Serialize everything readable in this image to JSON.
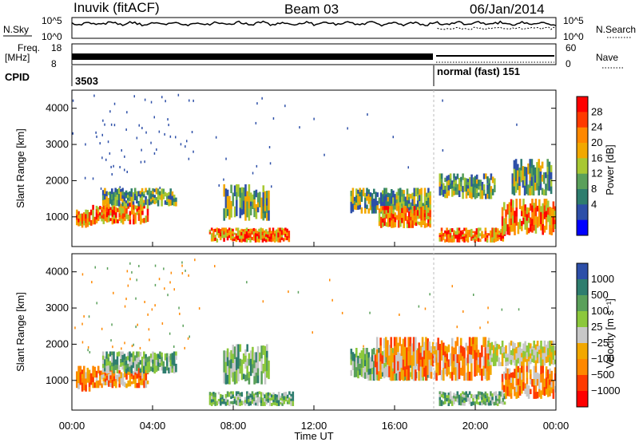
{
  "header": {
    "radar": "Inuvik (fitACF)",
    "beam": "Beam 03",
    "date": "06/Jan/2014"
  },
  "top_panels": {
    "nsky_label": "N.Sky",
    "nsky_ticks": [
      "10^5",
      "10^0"
    ],
    "nsearch_label": "N.Search",
    "nsearch_ticks": [
      "10^5",
      "10^0"
    ],
    "freq_label_line1": "Freq.",
    "freq_label_line2": "[MHz]",
    "freq_ticks": [
      "18",
      "8"
    ],
    "nave_label": "Nave",
    "nave_ticks": [
      "60",
      "0"
    ],
    "cpid_label": "CPID",
    "cpid_value_1": "3503",
    "cpid_value_2": "normal (fast) 151"
  },
  "chart_data": [
    {
      "type": "heatmap",
      "title": "",
      "parameter": "Power",
      "colorbar_label": "Power [dB]",
      "colorbar_ticks": [
        "28",
        "24",
        "20",
        "16",
        "12",
        "8",
        "4"
      ],
      "colorbar_colors": [
        "#ff0000",
        "#ff3a00",
        "#ff8800",
        "#f2a800",
        "#a8c832",
        "#5aa05a",
        "#2e7d6e",
        "#2d4fa8",
        "#0000ff"
      ],
      "ylabel": "Slant Range [km]",
      "yticks": [
        "4000",
        "3000",
        "2000",
        "1000"
      ],
      "ylim": [
        180,
        4500
      ],
      "xlabel": "",
      "xlim": [
        "00:00",
        "24:00"
      ],
      "blobs": [
        {
          "t0": 0.2,
          "t1": 1.0,
          "r0": 700,
          "r1": 1200,
          "level": "high"
        },
        {
          "t0": 1.0,
          "t1": 3.8,
          "r0": 800,
          "r1": 1400,
          "level": "high"
        },
        {
          "t0": 1.5,
          "t1": 5.2,
          "r0": 1300,
          "r1": 1800,
          "level": "mid"
        },
        {
          "t0": 6.8,
          "t1": 10.8,
          "r0": 300,
          "r1": 700,
          "level": "high"
        },
        {
          "t0": 7.5,
          "t1": 9.8,
          "r0": 900,
          "r1": 1900,
          "level": "mid"
        },
        {
          "t0": 13.8,
          "t1": 17.8,
          "r0": 1100,
          "r1": 1800,
          "level": "mid"
        },
        {
          "t0": 15.2,
          "t1": 17.8,
          "r0": 700,
          "r1": 1300,
          "level": "high"
        },
        {
          "t0": 18.2,
          "t1": 21.5,
          "r0": 300,
          "r1": 700,
          "level": "high"
        },
        {
          "t0": 18.2,
          "t1": 21.0,
          "r0": 1500,
          "r1": 2200,
          "level": "mid"
        },
        {
          "t0": 21.3,
          "t1": 24.0,
          "r0": 500,
          "r1": 1500,
          "level": "high"
        },
        {
          "t0": 21.8,
          "t1": 23.8,
          "r0": 1600,
          "r1": 2600,
          "level": "mid"
        }
      ]
    },
    {
      "type": "heatmap",
      "title": "",
      "parameter": "Velocity",
      "colorbar_label": "Velocity [m s⁻¹]",
      "colorbar_ticks": [
        "1000",
        "500",
        "100",
        "25",
        "−25",
        "−100",
        "−500",
        "−1000"
      ],
      "colorbar_colors": [
        "#2d4fa8",
        "#2e7d6e",
        "#5aa05a",
        "#8cc83c",
        "#c8c8c8",
        "#f2a800",
        "#ff8800",
        "#ff3a00",
        "#ff0000"
      ],
      "ylabel": "Slant Range [km]",
      "yticks": [
        "4000",
        "3000",
        "2000",
        "1000"
      ],
      "ylim": [
        180,
        4500
      ],
      "xlabel": "Time UT",
      "xticks": [
        "00:00",
        "04:00",
        "08:00",
        "12:00",
        "16:00",
        "20:00",
        "00:00"
      ],
      "xlim": [
        "00:00",
        "24:00"
      ],
      "blobs": [
        {
          "t0": 0.2,
          "t1": 1.0,
          "r0": 700,
          "r1": 1400,
          "level": "neg"
        },
        {
          "t0": 1.0,
          "t1": 3.8,
          "r0": 800,
          "r1": 1400,
          "level": "neg"
        },
        {
          "t0": 1.5,
          "t1": 5.2,
          "r0": 1200,
          "r1": 1800,
          "level": "pos"
        },
        {
          "t0": 6.8,
          "t1": 11.0,
          "r0": 300,
          "r1": 700,
          "level": "pos"
        },
        {
          "t0": 7.5,
          "t1": 9.8,
          "r0": 900,
          "r1": 2000,
          "level": "pos"
        },
        {
          "t0": 13.8,
          "t1": 17.8,
          "r0": 1000,
          "r1": 1900,
          "level": "pos"
        },
        {
          "t0": 15.0,
          "t1": 20.8,
          "r0": 1000,
          "r1": 2200,
          "level": "neg"
        },
        {
          "t0": 18.2,
          "t1": 21.5,
          "r0": 300,
          "r1": 700,
          "level": "pos"
        },
        {
          "t0": 20.6,
          "t1": 24.0,
          "r0": 1400,
          "r1": 2100,
          "level": "zero"
        },
        {
          "t0": 21.3,
          "t1": 24.0,
          "r0": 500,
          "r1": 1400,
          "level": "neg"
        }
      ]
    }
  ]
}
